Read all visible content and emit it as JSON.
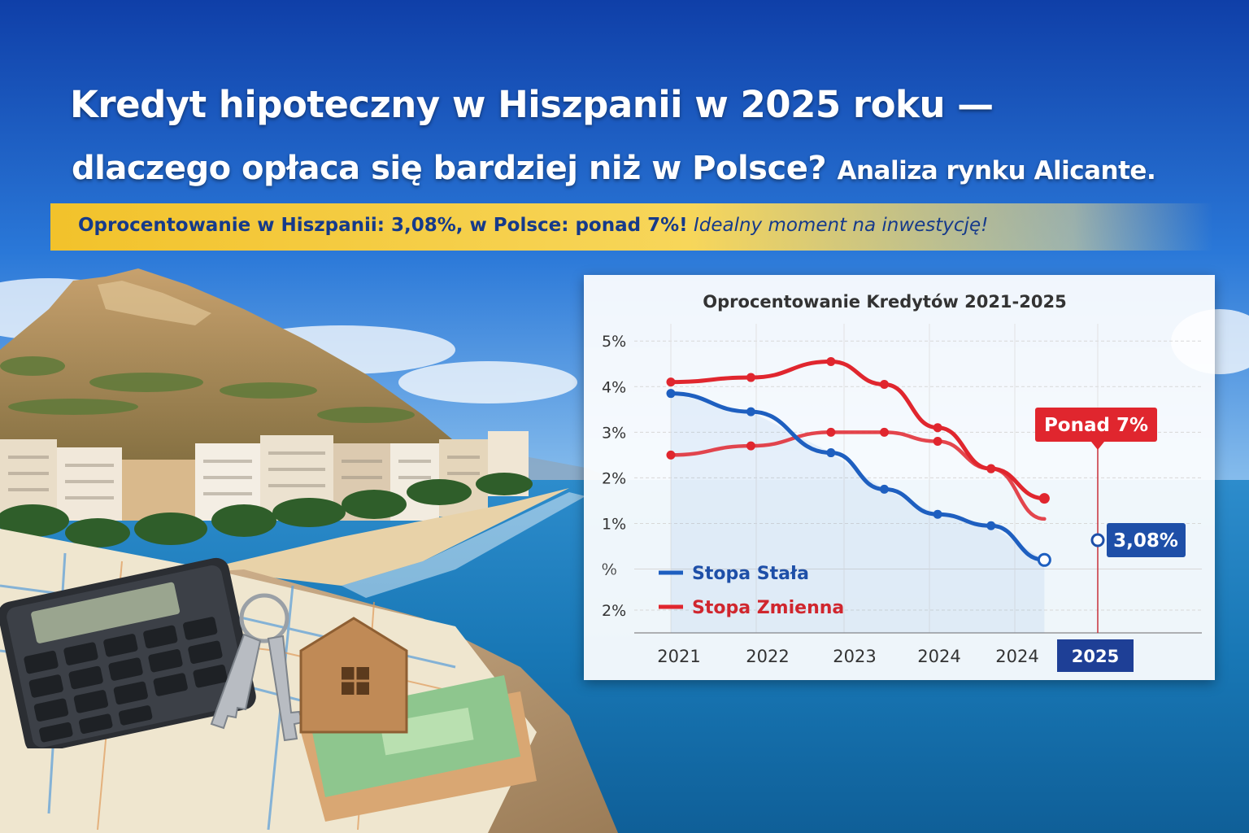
{
  "header": {
    "title_line1": "Kredyt hipoteczny w Hiszpanii w 2025 roku —",
    "title_line2": "dlaczego opłaca się bardziej niż w Polsce?",
    "title_line2_sub": "Analiza rynku Alicante."
  },
  "banner": {
    "bold_text": "Oprocentowanie w Hiszpanii: 3,08%, w Polsce: ponad 7%!",
    "italic_text": "Idealny moment na inwestycję!"
  },
  "colors": {
    "blue_series": "#1e5fc0",
    "red_series": "#e0262e",
    "banner_yellow": "#f2c22b",
    "title_text": "#ffffff"
  },
  "chart_data": {
    "type": "line",
    "title": "Oprocentowanie Kredytów 2021-2025",
    "y_tick_labels": [
      "5%",
      "4%",
      "3%",
      "2%",
      "1%",
      "⁰⁄₀",
      "2%"
    ],
    "x_tick_labels": [
      "2021",
      "2022",
      "2023",
      "2024",
      "2024",
      "2025"
    ],
    "x": [
      2021,
      2021.75,
      2022.5,
      2023,
      2023.5,
      2024,
      2024.5,
      2025
    ],
    "series": [
      {
        "name": "Stopa Stała",
        "color": "#1e5fc0",
        "values": [
          3.85,
          3.45,
          2.55,
          1.75,
          1.2,
          0.95,
          0.2,
          null
        ]
      },
      {
        "name": "Stopa Zmienna",
        "color": "#e0262e",
        "values": [
          4.1,
          4.2,
          4.55,
          4.05,
          3.1,
          2.2,
          1.55,
          null
        ]
      },
      {
        "name": "",
        "color": "#e0262e",
        "values": [
          2.5,
          2.7,
          3.0,
          3.0,
          2.8,
          2.2,
          1.1,
          null
        ]
      }
    ],
    "ylim": [
      -1.4,
      5.2
    ],
    "annotations": [
      {
        "text": "Ponad 7%",
        "color": "#e0262e"
      },
      {
        "text": "3,08%",
        "color": "#1e4fa8"
      }
    ],
    "highlight_category": "2025",
    "legend": "bottom-left",
    "grid": true
  }
}
